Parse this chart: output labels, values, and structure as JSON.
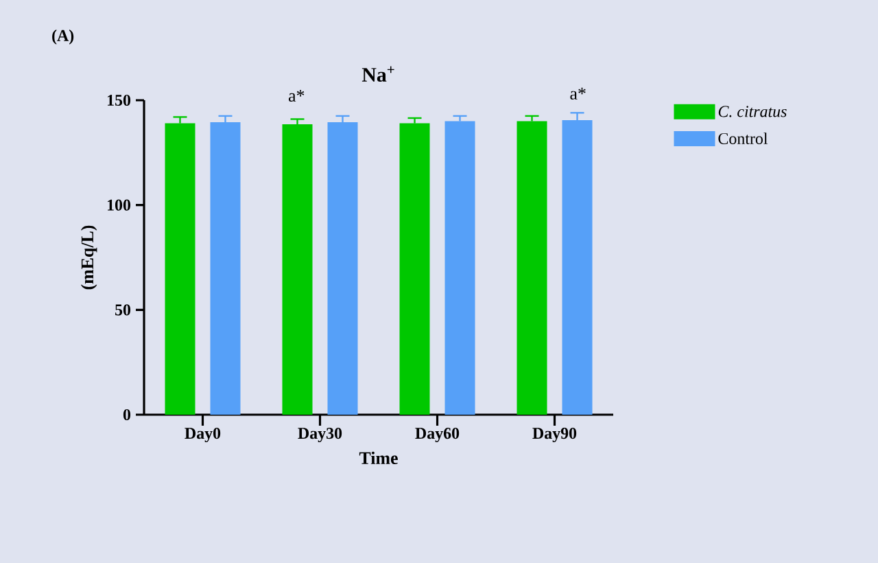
{
  "chart_data": {
    "type": "bar",
    "title": "Na$^{+}$",
    "xlabel": "Time",
    "ylabel": "(mEq/L)",
    "categories": [
      "Day0",
      "Day30",
      "Day60",
      "Day90"
    ],
    "series": [
      {
        "name": "C. citratus",
        "color": "#00c800",
        "values": [
          139,
          138.5,
          139,
          140
        ],
        "errors": [
          3,
          2.5,
          2.5,
          2.5
        ]
      },
      {
        "name": "Control",
        "color": "#56a0f8",
        "values": [
          139.5,
          139.5,
          140,
          140.5
        ],
        "errors": [
          3,
          3,
          2.5,
          3.5
        ]
      }
    ],
    "ylim": [
      0,
      150
    ],
    "yticks": [
      0,
      50,
      100,
      150
    ],
    "grid": false,
    "legend": "top right",
    "annotations": [
      "(A)",
      "a*",
      "a*"
    ]
  }
}
